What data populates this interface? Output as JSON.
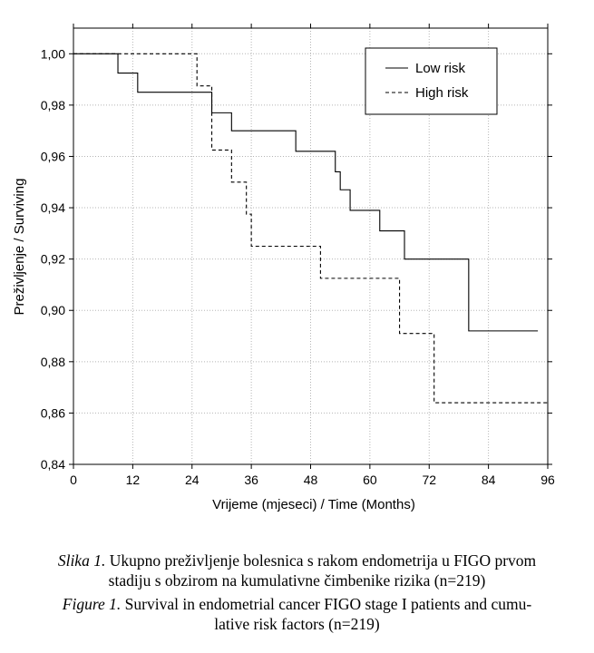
{
  "chart_data": {
    "type": "line",
    "title": "",
    "xlabel": "Vrijeme (mjeseci) / Time (Months)",
    "ylabel": "Preživljenje / Surviving",
    "xlim": [
      0,
      96
    ],
    "ylim": [
      0.84,
      1.01
    ],
    "x_ticks": [
      0,
      12,
      24,
      36,
      48,
      60,
      72,
      84,
      96
    ],
    "x_tick_labels": [
      "0",
      "12",
      "24",
      "36",
      "48",
      "60",
      "72",
      "84",
      "96"
    ],
    "y_ticks": [
      0.84,
      0.86,
      0.88,
      0.9,
      0.92,
      0.94,
      0.96,
      0.98,
      1.0
    ],
    "y_tick_labels": [
      "0,84",
      "0,86",
      "0,88",
      "0,90",
      "0,92",
      "0,94",
      "0,96",
      "0,98",
      "1,00"
    ],
    "grid": true,
    "legend_position": "top-right",
    "step": true,
    "series": [
      {
        "name": "Low risk",
        "style": "solid",
        "color": "#000000",
        "x": [
          0,
          9,
          13,
          28,
          32,
          45,
          53,
          54,
          56,
          62,
          67,
          80,
          94
        ],
        "y": [
          1.0,
          0.9925,
          0.985,
          0.977,
          0.97,
          0.962,
          0.954,
          0.947,
          0.939,
          0.931,
          0.92,
          0.892,
          0.892
        ]
      },
      {
        "name": "High risk",
        "style": "dashed",
        "color": "#000000",
        "x": [
          0,
          25,
          28,
          32,
          35,
          36,
          50,
          66,
          73,
          96
        ],
        "y": [
          1.0,
          0.9875,
          0.9625,
          0.95,
          0.9375,
          0.925,
          0.9125,
          0.891,
          0.864,
          0.864
        ]
      }
    ]
  },
  "caption": {
    "hr_lead": "Slika 1.",
    "hr_line1": " Ukupno preživljenje bolesnica s rakom endometrija u FIGO prvom",
    "hr_line2": "stadiju s obzirom na kumulativne čimbenike rizika (n=219)",
    "en_lead": "Figure 1.",
    "en_line1": " Survival in endometrial cancer FIGO stage I patients and cumu-",
    "en_line2": "lative risk factors (n=219)"
  }
}
